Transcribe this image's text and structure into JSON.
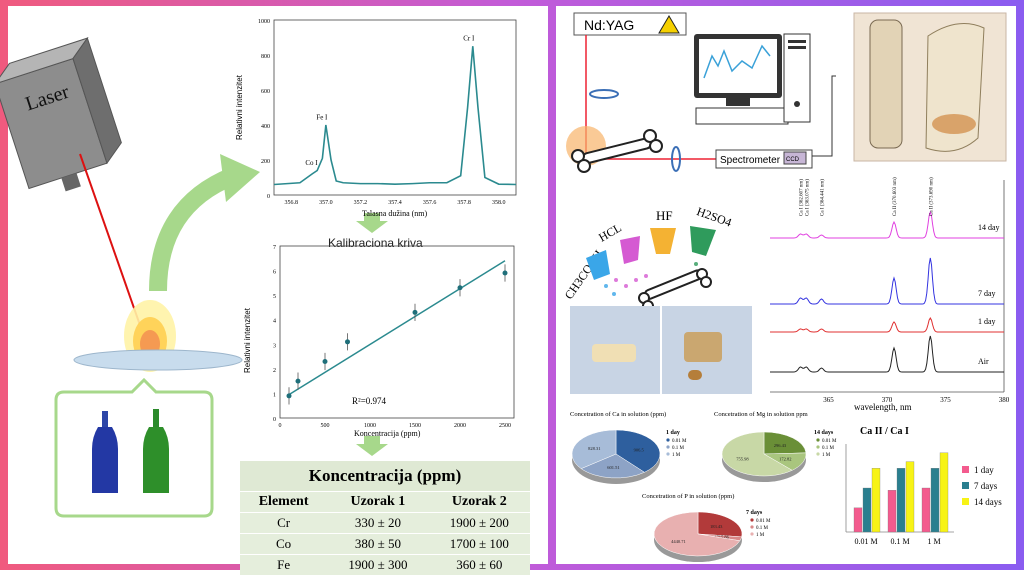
{
  "left": {
    "laser_label": "Laser",
    "spectrum": {
      "ylabel": "Relativni intenzitet",
      "xlabel": "Talasna dužina (nm)",
      "yticks": [
        "0",
        "200",
        "400",
        "600",
        "800",
        "1000"
      ],
      "xticks": [
        "356.8",
        "357.0",
        "357.2",
        "357.4",
        "357.6",
        "357.8",
        "358.0"
      ],
      "peaks": [
        "Co I",
        "Fe I",
        "Cr I"
      ]
    },
    "calibration_title": "Kalibraciona kriva",
    "calibration": {
      "ylabel": "Relativni intenzitet",
      "xlabel": "Koncentracija (ppm)",
      "r2": "R²=0.974",
      "yticks": [
        "0",
        "1",
        "2",
        "3",
        "4",
        "5",
        "6",
        "7"
      ],
      "xticks": [
        "0",
        "500",
        "1000",
        "1500",
        "2000",
        "2500"
      ]
    },
    "table": {
      "caption": "Koncentracija (ppm)",
      "headers": [
        "Element",
        "Uzorak 1",
        "Uzorak 2"
      ],
      "rows": [
        [
          "Cr",
          "330 ± 20",
          "1900 ± 200"
        ],
        [
          "Co",
          "380 ± 50",
          "1700 ± 100"
        ],
        [
          "Fe",
          "1900 ± 300",
          "360 ± 60"
        ]
      ]
    }
  },
  "right": {
    "ndyag_label": "Nd:YAG",
    "spectrometer_label": "Spectrometer",
    "ccd_label": "CCD",
    "acids": [
      "CH3COOH",
      "HCL",
      "HF",
      "H2SO4"
    ],
    "spectra": {
      "xlabel": "wavelength, nm",
      "xticks": [
        "365",
        "370",
        "375",
        "380"
      ],
      "peak_labels": [
        "Ca I (362.607 nm)",
        "Ca I (363.075 nm)",
        "Ca I (364.441 nm)",
        "Ca II (370.603 nm)",
        "Ca II (373.690 nm)"
      ],
      "series": [
        "14 day",
        "7 day",
        "1 day",
        "Air"
      ]
    },
    "pie_ca": {
      "title": "Concetration of Ca in solution (ppm)",
      "days": "1 day",
      "legend": [
        "0.01 M",
        "0.1 M",
        "1 M"
      ],
      "labels": [
        "828.31",
        "601.51",
        "906.5"
      ]
    },
    "pie_mg": {
      "title": "Concetration of Mg in solution ppm",
      "days": "14 days",
      "legend": [
        "0.01 M",
        "0.1 M",
        "1 M"
      ],
      "labels": [
        "755.98",
        "172.82",
        "296.43"
      ]
    },
    "pie_p": {
      "title": "Concetration of P in solution (ppm)",
      "days": "7 days",
      "legend": [
        "0.01 M",
        "0.1 M",
        "1 M"
      ],
      "labels": [
        "4440.71",
        "1715.86",
        "183.43"
      ]
    },
    "bar_chart": {
      "title": "Ca II / Ca I",
      "categories": [
        "0.01 M",
        "0.1 M",
        "1 M"
      ],
      "legend": [
        "1 day",
        "7 days",
        "14 days"
      ]
    }
  },
  "chart_data": [
    {
      "type": "line",
      "title": "",
      "xlabel": "Talasna dužina (nm)",
      "ylabel": "Relativni intenzitet",
      "xlim": [
        356.7,
        358.1
      ],
      "ylim": [
        0,
        1000
      ],
      "x": [
        356.7,
        356.85,
        356.92,
        356.95,
        356.98,
        357.0,
        357.03,
        357.06,
        357.1,
        357.2,
        357.3,
        357.4,
        357.5,
        357.6,
        357.7,
        357.78,
        357.82,
        357.85,
        357.88,
        357.92,
        358.0,
        358.1
      ],
      "series": [
        {
          "values": [
            60,
            70,
            120,
            140,
            210,
            400,
            200,
            80,
            70,
            65,
            65,
            62,
            65,
            70,
            70,
            110,
            500,
            850,
            500,
            100,
            62,
            60
          ]
        }
      ],
      "annotations": [
        "Co I",
        "Fe I",
        "Cr I"
      ]
    },
    {
      "type": "scatter",
      "title": "Kalibraciona kriva",
      "xlabel": "Koncentracija (ppm)",
      "ylabel": "Relativni intenzitet",
      "xlim": [
        0,
        2600
      ],
      "ylim": [
        0,
        7
      ],
      "x": [
        100,
        200,
        500,
        750,
        1500,
        2000,
        2500
      ],
      "series": [
        {
          "values": [
            0.9,
            1.5,
            2.3,
            3.1,
            4.3,
            5.3,
            5.9
          ]
        }
      ],
      "fit": "linear",
      "annotation": "R²=0.974"
    },
    {
      "type": "line",
      "title": "",
      "xlabel": "wavelength, nm",
      "xlim": [
        360,
        380
      ],
      "series": [
        {
          "name": "14 day"
        },
        {
          "name": "7 day"
        },
        {
          "name": "1 day"
        },
        {
          "name": "Air"
        }
      ]
    },
    {
      "type": "pie",
      "title": "Concetration of Ca in solution (ppm)",
      "categories": [
        "0.01 M",
        "0.1 M",
        "1 M"
      ],
      "values": [
        906.5,
        601.51,
        828.31
      ]
    },
    {
      "type": "pie",
      "title": "Concetration of Mg in solution ppm",
      "categories": [
        "0.01 M",
        "0.1 M",
        "1 M"
      ],
      "values": [
        296.43,
        172.82,
        755.98
      ]
    },
    {
      "type": "pie",
      "title": "Concetration of P in solution (ppm)",
      "categories": [
        "0.01 M",
        "0.1 M",
        "1 M"
      ],
      "values": [
        1715.86,
        183.43,
        4440.71
      ]
    },
    {
      "type": "bar",
      "title": "Ca II / Ca I",
      "categories": [
        "0.01 M",
        "0.1 M",
        "1 M"
      ],
      "series": [
        {
          "name": "1 day",
          "values": [
            1.1,
            1.9,
            2.0
          ]
        },
        {
          "name": "7 days",
          "values": [
            2.0,
            2.9,
            2.9
          ]
        },
        {
          "name": "14 days",
          "values": [
            2.9,
            3.2,
            3.6
          ]
        }
      ],
      "colors": [
        "#f35b8e",
        "#2a7f8f",
        "#f7f316"
      ]
    }
  ]
}
